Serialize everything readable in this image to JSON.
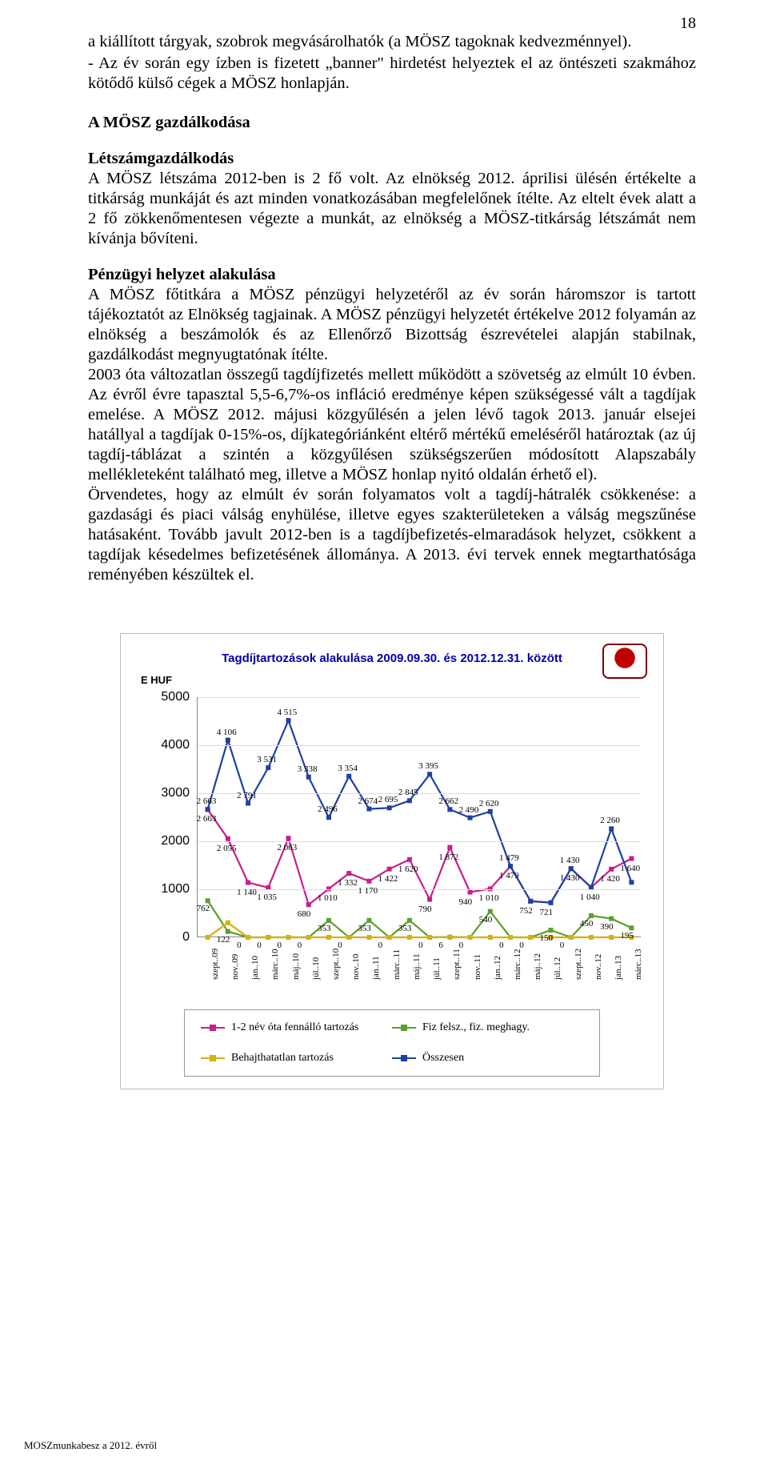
{
  "page_number": "18",
  "paragraphs": {
    "p1": "a kiállított tárgyak, szobrok megvásárolhatók (a MÖSZ tagoknak kedvezménnyel).",
    "p2": "- Az év során egy ízben is fizetett „banner\" hirdetést helyeztek el az öntészeti szakmához kötődő külső cégek a MÖSZ honlapján.",
    "h1": "A MÖSZ gazdálkodása",
    "h2": "Létszámgazdálkodás",
    "p3": "A MÖSZ létszáma 2012-ben is 2 fő volt. Az elnökség 2012. áprilisi ülésén értékelte a titkárság munkáját és azt minden vonatkozásában megfelelőnek ítélte. Az eltelt évek alatt a 2 fő zökkenőmentesen végezte a munkát, az elnökség a MÖSZ-titkárság létszámát nem kívánja bővíteni.",
    "h3": "Pénzügyi helyzet alakulása",
    "p4": "A MÖSZ főtitkára a MÖSZ pénzügyi helyzetéről az év során háromszor is tartott tájékoztatót az Elnökség tagjainak. A MÖSZ pénzügyi helyzetét értékelve 2012 folyamán az elnökség a beszámolók és az Ellenőrző Bizottság észrevételei alapján stabilnak, gazdálkodást megnyugtatónak ítélte.",
    "p5": "2003 óta változatlan összegű tagdíjfizetés mellett működött a szövetség az elmúlt 10 évben.  Az évről évre tapasztal 5,5-6,7%-os infláció eredménye képen szükségessé vált a tagdíjak emelése. A MÖSZ 2012. májusi közgyűlésén a jelen lévő tagok 2013. január elsejei hatállyal a tagdíjak 0-15%-os, díjkategóriánként eltérő mértékű emeléséről határoztak (az új tagdíj-táblázat a szintén a közgyűlésen szükségszerűen módosított Alapszabály mellékleteként található meg, illetve a MÖSZ honlap nyitó oldalán érhető el).",
    "p6": "Örvendetes, hogy az elmúlt év során folyamatos volt a tagdíj-hátralék csökkenése: a gazdasági és piaci válság enyhülése, illetve egyes szakterületeken a válság megszűnése hatásaként.  Tovább javult 2012-ben is a tagdíjbefizetés-elmaradások helyzet, csökkent a tagdíjak késedelmes befizetésének állománya. A 2013. évi tervek ennek megtarthatósága reményében készültek el."
  },
  "chart": {
    "title": "Tagdíjtartozások alakulása 2009.09.30. és 2012.12.31. között",
    "unit": "E HUF",
    "ylim": [
      0,
      5000
    ],
    "ytick_step": 1000,
    "categories": [
      "szept..09",
      "nov..09",
      "jan..10",
      "márc..10",
      "máj..10",
      "júl..10",
      "szept..10",
      "nov..10",
      "jan..11",
      "márc..11",
      "máj..11",
      "júl..11",
      "szept..11",
      "nov..11",
      "jan..12",
      "márc..12",
      "máj..12",
      "júl..12",
      "szept..12",
      "nov..12",
      "jan..13",
      "márc..13"
    ],
    "series": [
      {
        "name": "1-2 név óta fennálló tartozás",
        "color": "#c81e8c",
        "values": [
          2663,
          2055,
          1140,
          1035,
          2063,
          680,
          1010,
          1332,
          1170,
          1422,
          1620,
          790,
          1872,
          940,
          1010,
          1479,
          752,
          721,
          1430,
          1040,
          1420,
          1640
        ]
      },
      {
        "name": "Fiz felsz., fiz. meghagy.",
        "color": "#5aa02c",
        "values": [
          762,
          122,
          0,
          0,
          0,
          0,
          353,
          0,
          353,
          0,
          353,
          0,
          6,
          0,
          540,
          0,
          0,
          150,
          0,
          450,
          390,
          195
        ]
      },
      {
        "name": "Behajthatatlan tartozás",
        "color": "#d4b010",
        "values": [
          0,
          303,
          0,
          0,
          0,
          0,
          0,
          0,
          0,
          0,
          0,
          0,
          0,
          0,
          0,
          0,
          0,
          0,
          0,
          0,
          0,
          0
        ]
      },
      {
        "name": "Összesen",
        "color": "#2040a0",
        "values": [
          2663,
          4106,
          2791,
          3531,
          4515,
          3338,
          2496,
          3354,
          2674,
          2695,
          2845,
          3395,
          2662,
          2490,
          2620,
          1479,
          752,
          721,
          1430,
          1040,
          2260,
          1145
        ]
      }
    ],
    "data_labels_top": [
      "2 663",
      "4 106",
      "2 791",
      "3531",
      "4 515",
      "3338",
      "3354",
      "2674",
      "2695",
      "2845",
      "3395",
      "2662",
      "2490",
      "2620",
      "2260"
    ],
    "legend": [
      "1-2 név óta fennálló tartozás",
      "Fiz felsz., fiz. meghagy.",
      "Behajthatatlan tartozás",
      "Összesen"
    ]
  },
  "footer": "MOSZmunkabesz a 2012. évről"
}
